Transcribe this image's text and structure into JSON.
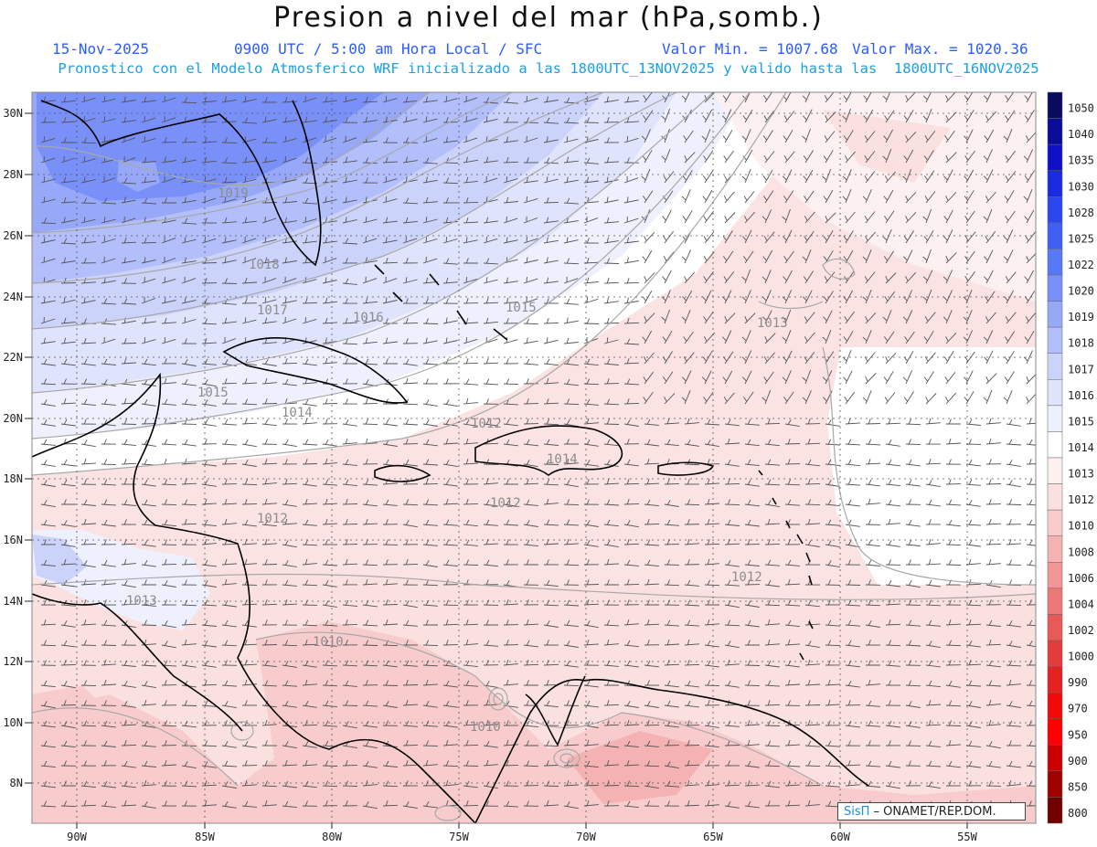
{
  "header": {
    "title": "Presion a nivel del mar (hPa,somb.)",
    "date": "15-Nov-2025",
    "time": "0900 UTC / 5:00 am Hora Local / SFC",
    "min": "Valor Min. = 1007.68",
    "max": "Valor Max. = 1020.36",
    "forecast": "Pronostico con el Modelo Atmosferico WRF inicializado a las 1800UTC_13NOV2025 y valido hasta las  1800UTC_16NOV2025"
  },
  "axes": {
    "lat_labels": [
      "30N",
      "28N",
      "26N",
      "24N",
      "22N",
      "20N",
      "18N",
      "16N",
      "14N",
      "12N",
      "10N",
      "8N"
    ],
    "lon_labels": [
      "90W",
      "85W",
      "80W",
      "75W",
      "70W",
      "65W",
      "60W",
      "55W"
    ]
  },
  "colorbar": {
    "levels": [
      "1050",
      "1040",
      "1035",
      "1030",
      "1028",
      "1025",
      "1022",
      "1020",
      "1019",
      "1018",
      "1017",
      "1016",
      "1015",
      "1014",
      "1013",
      "1012",
      "1010",
      "1008",
      "1006",
      "1004",
      "1002",
      "1000",
      "990",
      "970",
      "950",
      "900",
      "850",
      "800"
    ],
    "colors": [
      "#0a0a60",
      "#0b0b9a",
      "#0f10c8",
      "#1b2be0",
      "#2c46f0",
      "#3f5ff3",
      "#5878f5",
      "#7890f7",
      "#97a8f8",
      "#b3bffa",
      "#cbd3fb",
      "#dfe4fc",
      "#eef0fd",
      "#ffffff",
      "#fdf0f0",
      "#fbe0e0",
      "#f8cccc",
      "#f4b2b2",
      "#f09696",
      "#ec7878",
      "#e85a5a",
      "#e43c3c",
      "#e42222",
      "#f20a0a",
      "#ff0000",
      "#cc0000",
      "#a00000",
      "#700000"
    ]
  },
  "isobars": [
    "1019",
    "1018",
    "1017",
    "1016",
    "1015",
    "1015",
    "1014",
    "1014",
    "1013",
    "1013",
    "1012",
    "1012",
    "1012",
    "1012",
    "1010",
    "1010"
  ],
  "credit": {
    "brand": "SisΠ",
    "text": " – ONAMET/REP.DOM."
  }
}
